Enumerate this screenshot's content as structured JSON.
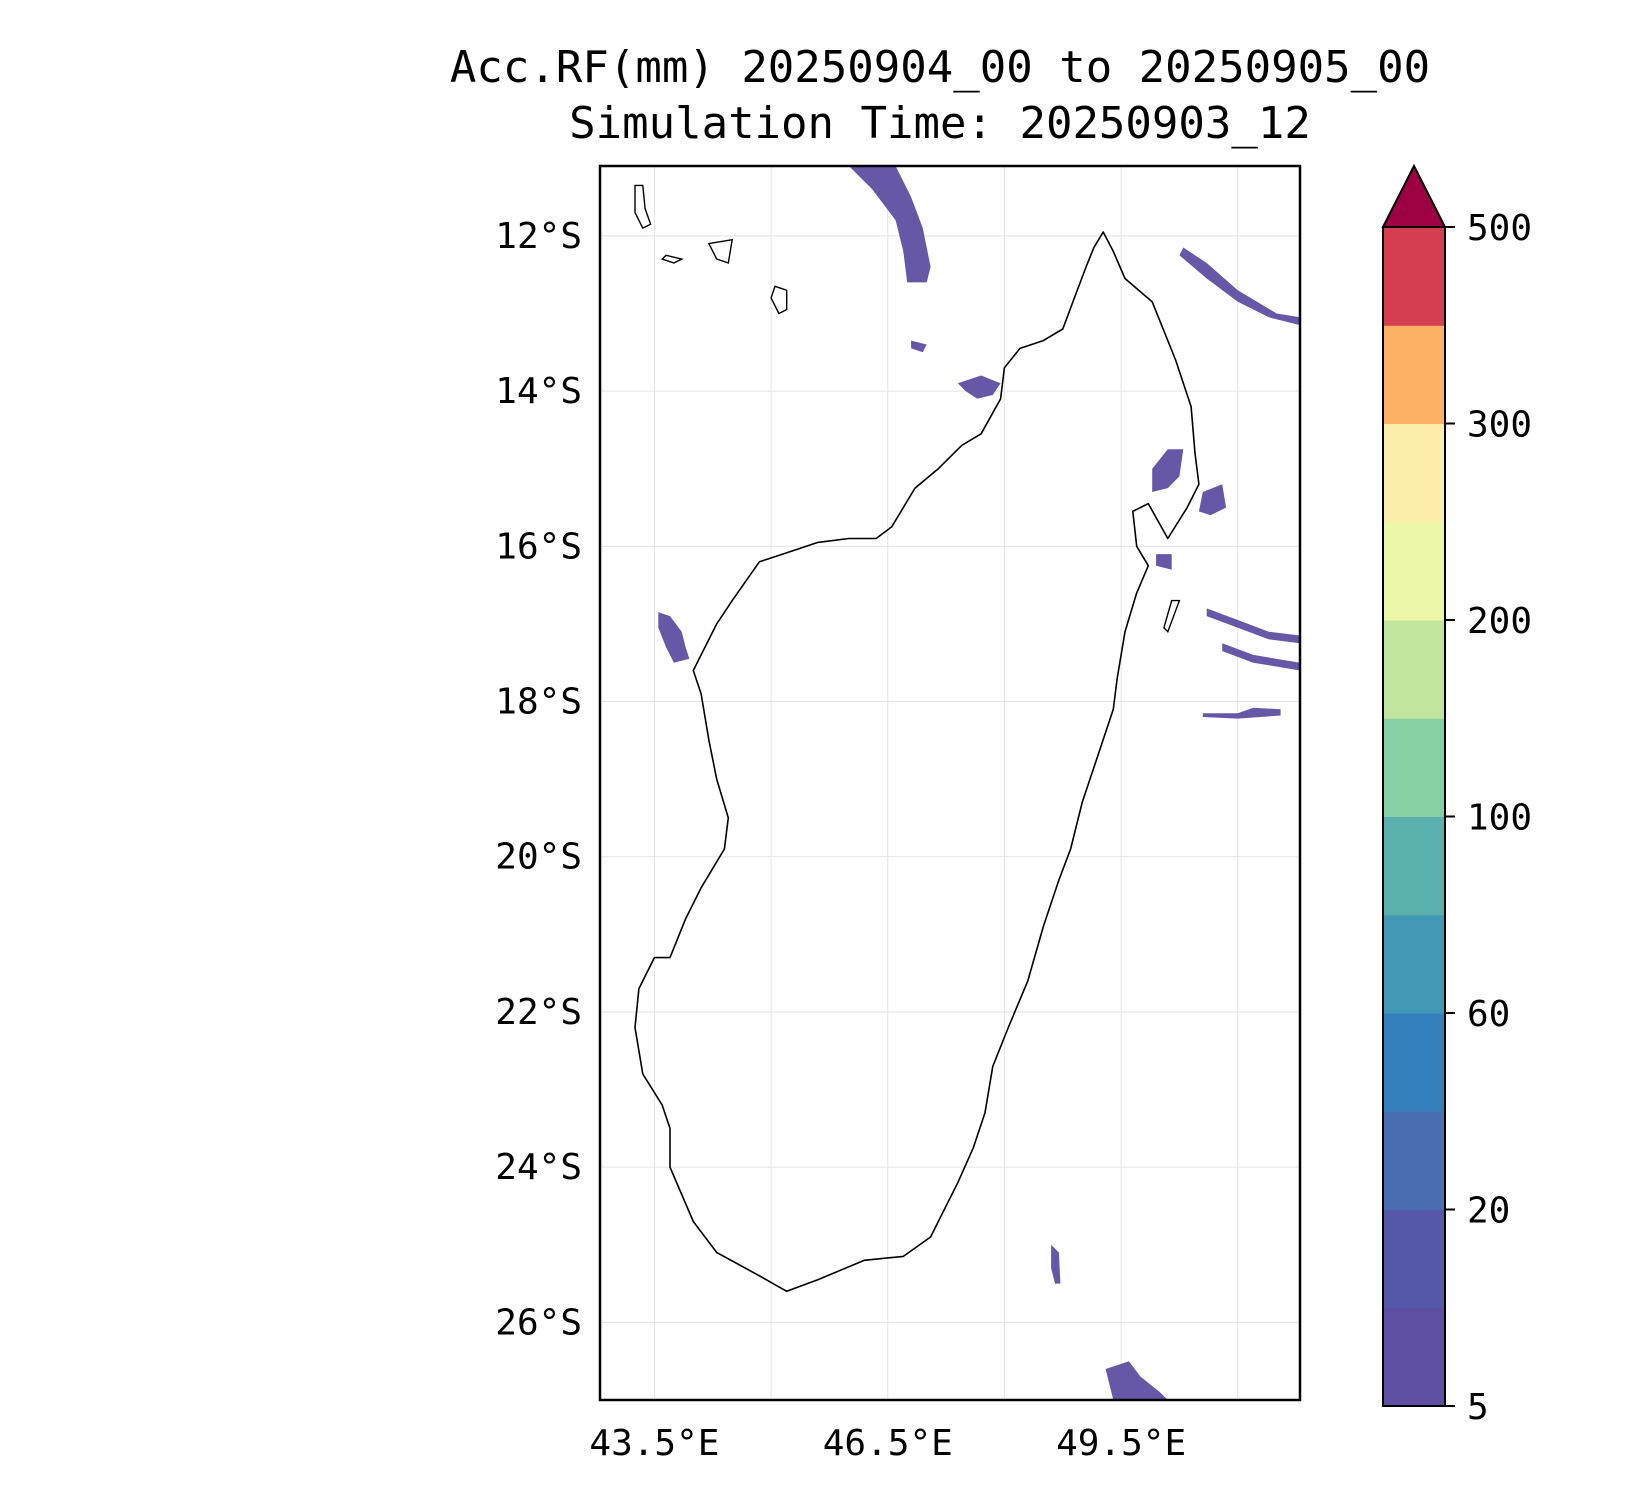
{
  "title": {
    "line1": "Acc.RF(mm) 20250904_00 to 20250905_00",
    "line2": "Simulation Time: 20250903_12"
  },
  "map": {
    "lon_range": [
      42.8,
      51.8
    ],
    "lat_range": [
      -27.0,
      -11.1
    ],
    "lat_ticks": [
      {
        "value": -12,
        "label": "12°S"
      },
      {
        "value": -14,
        "label": "14°S"
      },
      {
        "value": -16,
        "label": "16°S"
      },
      {
        "value": -18,
        "label": "18°S"
      },
      {
        "value": -20,
        "label": "20°S"
      },
      {
        "value": -22,
        "label": "22°S"
      },
      {
        "value": -24,
        "label": "24°S"
      },
      {
        "value": -26,
        "label": "26°S"
      }
    ],
    "lon_ticks": [
      {
        "value": 43.5,
        "label": "43.5°E"
      },
      {
        "value": 46.5,
        "label": "46.5°E"
      },
      {
        "value": 49.5,
        "label": "49.5°E"
      }
    ],
    "minor_lon_gridlines": [
      45.0,
      48.0,
      51.0
    ],
    "gridlines": true,
    "coastline_color": "#000000",
    "rain_fill_color": "#5e4fa2",
    "rain_patches": [
      {
        "name": "north-band",
        "points": [
          [
            46.0,
            -11.1
          ],
          [
            46.6,
            -11.1
          ],
          [
            46.8,
            -11.5
          ],
          [
            46.95,
            -11.9
          ],
          [
            47.05,
            -12.4
          ],
          [
            47.0,
            -12.6
          ],
          [
            46.75,
            -12.6
          ],
          [
            46.7,
            -12.2
          ],
          [
            46.6,
            -11.8
          ],
          [
            46.3,
            -11.4
          ]
        ]
      },
      {
        "name": "northeast-band",
        "points": [
          [
            50.3,
            -12.15
          ],
          [
            50.6,
            -12.35
          ],
          [
            51.0,
            -12.7
          ],
          [
            51.5,
            -13.0
          ],
          [
            51.8,
            -13.05
          ],
          [
            51.8,
            -13.15
          ],
          [
            51.4,
            -13.05
          ],
          [
            51.0,
            -12.85
          ],
          [
            50.6,
            -12.55
          ],
          [
            50.25,
            -12.25
          ]
        ]
      },
      {
        "name": "nw-bay-patch",
        "points": [
          [
            47.4,
            -13.9
          ],
          [
            47.7,
            -13.8
          ],
          [
            47.95,
            -13.9
          ],
          [
            47.85,
            -14.05
          ],
          [
            47.65,
            -14.1
          ],
          [
            47.5,
            -14.0
          ]
        ]
      },
      {
        "name": "small-nw-patch",
        "points": [
          [
            46.8,
            -13.35
          ],
          [
            47.0,
            -13.4
          ],
          [
            46.95,
            -13.5
          ],
          [
            46.8,
            -13.45
          ]
        ]
      },
      {
        "name": "west-patch",
        "points": [
          [
            43.55,
            -16.85
          ],
          [
            43.7,
            -16.9
          ],
          [
            43.85,
            -17.1
          ],
          [
            43.9,
            -17.3
          ],
          [
            43.95,
            -17.45
          ],
          [
            43.75,
            -17.5
          ],
          [
            43.65,
            -17.3
          ],
          [
            43.55,
            -17.05
          ]
        ]
      },
      {
        "name": "east-coast-patch1",
        "points": [
          [
            49.9,
            -15.0
          ],
          [
            50.1,
            -14.75
          ],
          [
            50.3,
            -14.75
          ],
          [
            50.25,
            -15.1
          ],
          [
            50.1,
            -15.25
          ],
          [
            49.9,
            -15.3
          ]
        ]
      },
      {
        "name": "east-coast-patch2",
        "points": [
          [
            50.55,
            -15.3
          ],
          [
            50.8,
            -15.2
          ],
          [
            50.85,
            -15.5
          ],
          [
            50.65,
            -15.6
          ],
          [
            50.5,
            -15.55
          ]
        ]
      },
      {
        "name": "east-coast-patch3",
        "points": [
          [
            49.95,
            -16.1
          ],
          [
            50.15,
            -16.1
          ],
          [
            50.15,
            -16.3
          ],
          [
            49.95,
            -16.25
          ]
        ]
      },
      {
        "name": "east-band-1",
        "points": [
          [
            50.6,
            -16.8
          ],
          [
            51.0,
            -16.95
          ],
          [
            51.4,
            -17.1
          ],
          [
            51.8,
            -17.15
          ],
          [
            51.8,
            -17.25
          ],
          [
            51.4,
            -17.2
          ],
          [
            51.0,
            -17.05
          ],
          [
            50.6,
            -16.9
          ]
        ]
      },
      {
        "name": "east-band-2",
        "points": [
          [
            50.8,
            -17.25
          ],
          [
            51.2,
            -17.4
          ],
          [
            51.8,
            -17.5
          ],
          [
            51.8,
            -17.6
          ],
          [
            51.2,
            -17.5
          ],
          [
            50.8,
            -17.35
          ]
        ]
      },
      {
        "name": "east-band-3",
        "points": [
          [
            50.55,
            -18.15
          ],
          [
            51.0,
            -18.15
          ],
          [
            51.2,
            -18.08
          ],
          [
            51.55,
            -18.1
          ],
          [
            51.55,
            -18.18
          ],
          [
            51.0,
            -18.22
          ],
          [
            50.55,
            -18.2
          ]
        ]
      },
      {
        "name": "southeast-patch",
        "points": [
          [
            48.6,
            -25.0
          ],
          [
            48.7,
            -25.1
          ],
          [
            48.72,
            -25.5
          ],
          [
            48.65,
            -25.5
          ],
          [
            48.6,
            -25.3
          ]
        ]
      },
      {
        "name": "south-patch",
        "points": [
          [
            49.3,
            -26.6
          ],
          [
            49.6,
            -26.5
          ],
          [
            49.75,
            -26.7
          ],
          [
            50.0,
            -26.9
          ],
          [
            50.1,
            -27.0
          ],
          [
            49.4,
            -27.0
          ]
        ]
      }
    ],
    "islands": [
      {
        "name": "grande-comore",
        "points": [
          [
            43.25,
            -11.35
          ],
          [
            43.35,
            -11.35
          ],
          [
            43.38,
            -11.65
          ],
          [
            43.45,
            -11.85
          ],
          [
            43.35,
            -11.9
          ],
          [
            43.25,
            -11.7
          ]
        ]
      },
      {
        "name": "moheli",
        "points": [
          [
            43.65,
            -12.25
          ],
          [
            43.85,
            -12.3
          ],
          [
            43.75,
            -12.35
          ],
          [
            43.6,
            -12.3
          ]
        ]
      },
      {
        "name": "anjouan",
        "points": [
          [
            44.2,
            -12.1
          ],
          [
            44.5,
            -12.05
          ],
          [
            44.45,
            -12.35
          ],
          [
            44.3,
            -12.3
          ]
        ]
      },
      {
        "name": "mayotte",
        "points": [
          [
            45.05,
            -12.65
          ],
          [
            45.2,
            -12.7
          ],
          [
            45.2,
            -12.95
          ],
          [
            45.1,
            -13.0
          ],
          [
            45.0,
            -12.8
          ]
        ]
      }
    ],
    "madagascar": [
      [
        49.27,
        -11.95
      ],
      [
        49.4,
        -12.2
      ],
      [
        49.55,
        -12.55
      ],
      [
        49.9,
        -12.85
      ],
      [
        50.2,
        -13.6
      ],
      [
        50.4,
        -14.2
      ],
      [
        50.45,
        -14.8
      ],
      [
        50.5,
        -15.2
      ],
      [
        50.35,
        -15.5
      ],
      [
        50.1,
        -15.9
      ],
      [
        49.85,
        -15.45
      ],
      [
        49.65,
        -15.55
      ],
      [
        49.7,
        -16.0
      ],
      [
        49.85,
        -16.25
      ],
      [
        49.7,
        -16.6
      ],
      [
        49.55,
        -17.1
      ],
      [
        49.45,
        -17.7
      ],
      [
        49.4,
        -18.1
      ],
      [
        49.2,
        -18.7
      ],
      [
        49.0,
        -19.3
      ],
      [
        48.85,
        -19.9
      ],
      [
        48.7,
        -20.3
      ],
      [
        48.5,
        -20.9
      ],
      [
        48.3,
        -21.6
      ],
      [
        48.05,
        -22.2
      ],
      [
        47.85,
        -22.7
      ],
      [
        47.75,
        -23.3
      ],
      [
        47.6,
        -23.75
      ],
      [
        47.4,
        -24.2
      ],
      [
        47.2,
        -24.6
      ],
      [
        47.05,
        -24.9
      ],
      [
        46.7,
        -25.15
      ],
      [
        46.2,
        -25.2
      ],
      [
        45.6,
        -25.45
      ],
      [
        45.2,
        -25.6
      ],
      [
        44.85,
        -25.4
      ],
      [
        44.3,
        -25.1
      ],
      [
        44.0,
        -24.7
      ],
      [
        43.7,
        -24.0
      ],
      [
        43.7,
        -23.5
      ],
      [
        43.6,
        -23.2
      ],
      [
        43.35,
        -22.8
      ],
      [
        43.25,
        -22.2
      ],
      [
        43.3,
        -21.7
      ],
      [
        43.5,
        -21.3
      ],
      [
        43.7,
        -21.3
      ],
      [
        43.9,
        -20.8
      ],
      [
        44.1,
        -20.4
      ],
      [
        44.4,
        -19.9
      ],
      [
        44.45,
        -19.5
      ],
      [
        44.3,
        -19.0
      ],
      [
        44.2,
        -18.5
      ],
      [
        44.1,
        -17.9
      ],
      [
        44.0,
        -17.6
      ],
      [
        44.3,
        -17.0
      ],
      [
        44.5,
        -16.7
      ],
      [
        44.85,
        -16.2
      ],
      [
        45.3,
        -16.05
      ],
      [
        45.6,
        -15.95
      ],
      [
        46.0,
        -15.9
      ],
      [
        46.35,
        -15.9
      ],
      [
        46.55,
        -15.75
      ],
      [
        46.85,
        -15.25
      ],
      [
        47.15,
        -15.0
      ],
      [
        47.45,
        -14.7
      ],
      [
        47.7,
        -14.55
      ],
      [
        47.95,
        -14.1
      ],
      [
        48.0,
        -13.7
      ],
      [
        48.2,
        -13.45
      ],
      [
        48.5,
        -13.35
      ],
      [
        48.75,
        -13.2
      ],
      [
        48.9,
        -12.8
      ],
      [
        49.05,
        -12.4
      ],
      [
        49.15,
        -12.15
      ]
    ],
    "nosy-boraha": [
      [
        50.15,
        -16.7
      ],
      [
        50.25,
        -16.7
      ],
      [
        50.1,
        -17.1
      ],
      [
        50.05,
        -17.05
      ]
    ]
  },
  "colorbar": {
    "levels": [
      5,
      10,
      20,
      40,
      60,
      80,
      100,
      150,
      200,
      250,
      300,
      400,
      500
    ],
    "colors": [
      "#5e4fa2",
      "#5659a9",
      "#4a6cb1",
      "#3580bb",
      "#4199b6",
      "#5bb0ad",
      "#86cfa5",
      "#c3e69f",
      "#ecf7a9",
      "#fcedab",
      "#fdb164",
      "#d53e4f"
    ],
    "extend_color": "#9e0142",
    "tick_labels": [
      {
        "level_index": 0,
        "label": "5"
      },
      {
        "level_index": 2,
        "label": "20"
      },
      {
        "level_index": 4,
        "label": "60"
      },
      {
        "level_index": 6,
        "label": "100"
      },
      {
        "level_index": 8,
        "label": "200"
      },
      {
        "level_index": 10,
        "label": "300"
      },
      {
        "level_index": 12,
        "label": "500"
      }
    ]
  }
}
